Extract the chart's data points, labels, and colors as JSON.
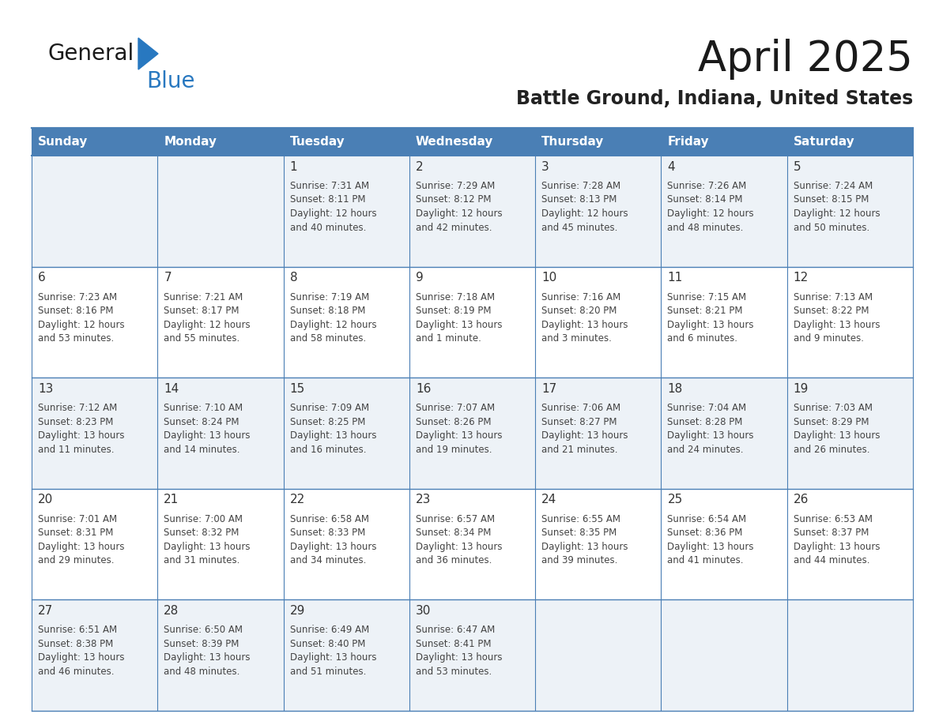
{
  "title": "April 2025",
  "subtitle": "Battle Ground, Indiana, United States",
  "header_color": "#4a7fb5",
  "header_text_color": "#ffffff",
  "cell_bg_even": "#edf2f7",
  "cell_bg_odd": "#ffffff",
  "border_color": "#4a7fb5",
  "day_headers": [
    "Sunday",
    "Monday",
    "Tuesday",
    "Wednesday",
    "Thursday",
    "Friday",
    "Saturday"
  ],
  "title_color": "#1a1a1a",
  "subtitle_color": "#222222",
  "number_color": "#333333",
  "text_color": "#444444",
  "logo_general_color": "#1a1a1a",
  "logo_blue_color": "#2878c0",
  "calendar_data": [
    [
      {
        "day": "",
        "info": ""
      },
      {
        "day": "",
        "info": ""
      },
      {
        "day": "1",
        "info": "Sunrise: 7:31 AM\nSunset: 8:11 PM\nDaylight: 12 hours\nand 40 minutes."
      },
      {
        "day": "2",
        "info": "Sunrise: 7:29 AM\nSunset: 8:12 PM\nDaylight: 12 hours\nand 42 minutes."
      },
      {
        "day": "3",
        "info": "Sunrise: 7:28 AM\nSunset: 8:13 PM\nDaylight: 12 hours\nand 45 minutes."
      },
      {
        "day": "4",
        "info": "Sunrise: 7:26 AM\nSunset: 8:14 PM\nDaylight: 12 hours\nand 48 minutes."
      },
      {
        "day": "5",
        "info": "Sunrise: 7:24 AM\nSunset: 8:15 PM\nDaylight: 12 hours\nand 50 minutes."
      }
    ],
    [
      {
        "day": "6",
        "info": "Sunrise: 7:23 AM\nSunset: 8:16 PM\nDaylight: 12 hours\nand 53 minutes."
      },
      {
        "day": "7",
        "info": "Sunrise: 7:21 AM\nSunset: 8:17 PM\nDaylight: 12 hours\nand 55 minutes."
      },
      {
        "day": "8",
        "info": "Sunrise: 7:19 AM\nSunset: 8:18 PM\nDaylight: 12 hours\nand 58 minutes."
      },
      {
        "day": "9",
        "info": "Sunrise: 7:18 AM\nSunset: 8:19 PM\nDaylight: 13 hours\nand 1 minute."
      },
      {
        "day": "10",
        "info": "Sunrise: 7:16 AM\nSunset: 8:20 PM\nDaylight: 13 hours\nand 3 minutes."
      },
      {
        "day": "11",
        "info": "Sunrise: 7:15 AM\nSunset: 8:21 PM\nDaylight: 13 hours\nand 6 minutes."
      },
      {
        "day": "12",
        "info": "Sunrise: 7:13 AM\nSunset: 8:22 PM\nDaylight: 13 hours\nand 9 minutes."
      }
    ],
    [
      {
        "day": "13",
        "info": "Sunrise: 7:12 AM\nSunset: 8:23 PM\nDaylight: 13 hours\nand 11 minutes."
      },
      {
        "day": "14",
        "info": "Sunrise: 7:10 AM\nSunset: 8:24 PM\nDaylight: 13 hours\nand 14 minutes."
      },
      {
        "day": "15",
        "info": "Sunrise: 7:09 AM\nSunset: 8:25 PM\nDaylight: 13 hours\nand 16 minutes."
      },
      {
        "day": "16",
        "info": "Sunrise: 7:07 AM\nSunset: 8:26 PM\nDaylight: 13 hours\nand 19 minutes."
      },
      {
        "day": "17",
        "info": "Sunrise: 7:06 AM\nSunset: 8:27 PM\nDaylight: 13 hours\nand 21 minutes."
      },
      {
        "day": "18",
        "info": "Sunrise: 7:04 AM\nSunset: 8:28 PM\nDaylight: 13 hours\nand 24 minutes."
      },
      {
        "day": "19",
        "info": "Sunrise: 7:03 AM\nSunset: 8:29 PM\nDaylight: 13 hours\nand 26 minutes."
      }
    ],
    [
      {
        "day": "20",
        "info": "Sunrise: 7:01 AM\nSunset: 8:31 PM\nDaylight: 13 hours\nand 29 minutes."
      },
      {
        "day": "21",
        "info": "Sunrise: 7:00 AM\nSunset: 8:32 PM\nDaylight: 13 hours\nand 31 minutes."
      },
      {
        "day": "22",
        "info": "Sunrise: 6:58 AM\nSunset: 8:33 PM\nDaylight: 13 hours\nand 34 minutes."
      },
      {
        "day": "23",
        "info": "Sunrise: 6:57 AM\nSunset: 8:34 PM\nDaylight: 13 hours\nand 36 minutes."
      },
      {
        "day": "24",
        "info": "Sunrise: 6:55 AM\nSunset: 8:35 PM\nDaylight: 13 hours\nand 39 minutes."
      },
      {
        "day": "25",
        "info": "Sunrise: 6:54 AM\nSunset: 8:36 PM\nDaylight: 13 hours\nand 41 minutes."
      },
      {
        "day": "26",
        "info": "Sunrise: 6:53 AM\nSunset: 8:37 PM\nDaylight: 13 hours\nand 44 minutes."
      }
    ],
    [
      {
        "day": "27",
        "info": "Sunrise: 6:51 AM\nSunset: 8:38 PM\nDaylight: 13 hours\nand 46 minutes."
      },
      {
        "day": "28",
        "info": "Sunrise: 6:50 AM\nSunset: 8:39 PM\nDaylight: 13 hours\nand 48 minutes."
      },
      {
        "day": "29",
        "info": "Sunrise: 6:49 AM\nSunset: 8:40 PM\nDaylight: 13 hours\nand 51 minutes."
      },
      {
        "day": "30",
        "info": "Sunrise: 6:47 AM\nSunset: 8:41 PM\nDaylight: 13 hours\nand 53 minutes."
      },
      {
        "day": "",
        "info": ""
      },
      {
        "day": "",
        "info": ""
      },
      {
        "day": "",
        "info": ""
      }
    ]
  ]
}
